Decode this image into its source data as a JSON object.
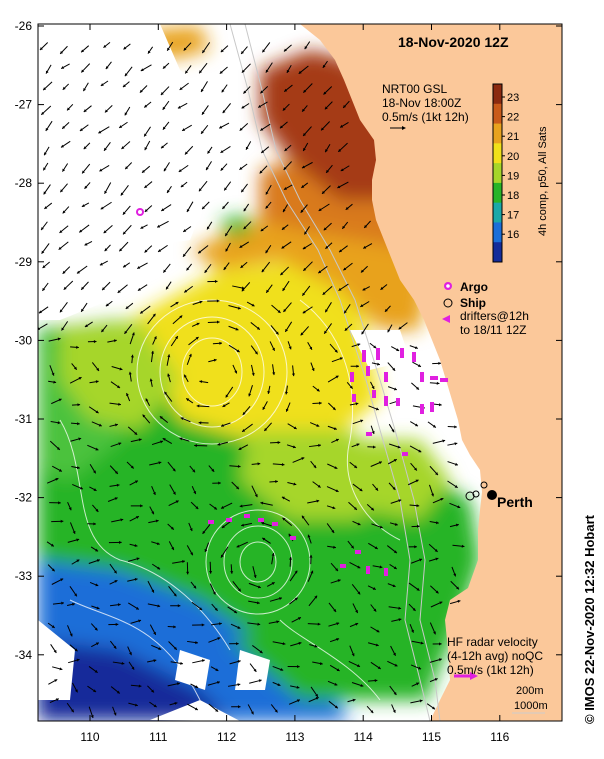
{
  "title": "18-Nov-2020 12Z",
  "wind": {
    "line1": "NRT00 GSL",
    "line2": "18-Nov 18:00Z",
    "line3": "0.5m/s (1kt 12h)"
  },
  "colorbar": {
    "ticks": [
      "23",
      "22",
      "21",
      "20",
      "19",
      "18",
      "17",
      "16"
    ],
    "label": "4h comp, p50, All Sats",
    "colors": [
      "#8b2a10",
      "#c95a1a",
      "#e8a21e",
      "#f0e01a",
      "#a6d62a",
      "#28b428",
      "#1aa8a8",
      "#1a6ed8",
      "#142c9a"
    ]
  },
  "legend": {
    "argo": "Argo",
    "ship": "Ship",
    "drifters1": "drifters@12h",
    "drifters2": "to 18/11 12Z"
  },
  "city": "Perth",
  "radar": {
    "line1": "HF radar velocity",
    "line2": "(4-12h avg) noQC",
    "line3": "0.5m/s (1kt 12h)"
  },
  "contours": {
    "c1": "200m",
    "c2": "1000m"
  },
  "credit": "© IMOS 22-Nov-2020 12:32 Hobart",
  "axes": {
    "y": [
      "-26",
      "-27",
      "-28",
      "-29",
      "-30",
      "-31",
      "-32",
      "-33",
      "-34"
    ],
    "x": [
      "110",
      "111",
      "112",
      "113",
      "114",
      "115",
      "116"
    ]
  },
  "colors": {
    "land": "#fbc89a",
    "argo": "#e020e0",
    "drifter": "#e020e0"
  }
}
